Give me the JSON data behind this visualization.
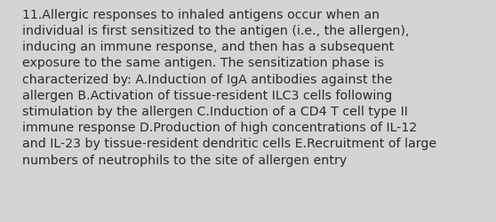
{
  "lines": [
    "11.Allergic responses to inhaled antigens occur when an",
    "individual is first sensitized to the antigen (i.e., the allergen),",
    "inducing an immune response, and then has a subsequent",
    "exposure to the same antigen. The sensitization phase is",
    "characterized by: A.Induction of IgA antibodies against the",
    "allergen B.Activation of tissue-resident ILC3 cells following",
    "stimulation by the allergen C.Induction of a CD4 T cell type II",
    "immune response D.Production of high concentrations of IL-12",
    "and IL-23 by tissue-resident dendritic cells E.Recruitment of large",
    "numbers of neutrophils to the site of allergen entry"
  ],
  "background_color": "#d4d4d4",
  "text_color": "#2b2b2b",
  "font_size": 10.2,
  "fig_width": 5.58,
  "fig_height": 2.51,
  "dpi": 100
}
